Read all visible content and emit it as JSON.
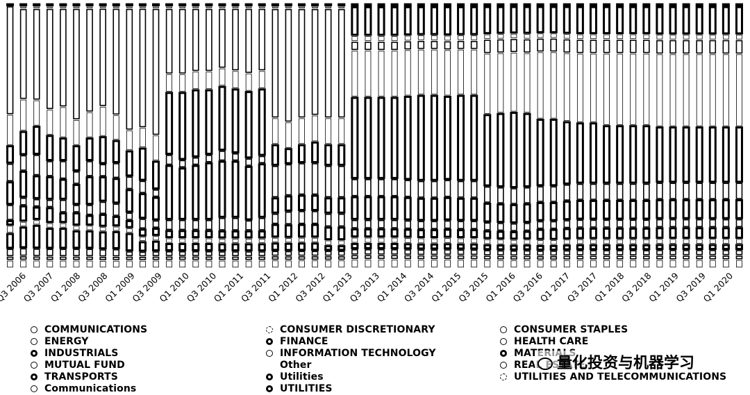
{
  "chart_data": {
    "type": "bar",
    "stacked": true,
    "normalized": true,
    "ylim": [
      0,
      100
    ],
    "grid": false,
    "legend_position": "bottom",
    "tick_labels": [
      "Q3 2006",
      "Q3 2007",
      "Q1 2008",
      "Q3 2008",
      "Q1 2009",
      "Q3 2009",
      "Q1 2010",
      "Q3 2010",
      "Q1 2011",
      "Q3 2011",
      "Q1 2012",
      "Q3 2012",
      "Q1 2013",
      "Q3 2013",
      "Q1 2014",
      "Q3 2014",
      "Q1 2015",
      "Q3 2015",
      "Q1 2016",
      "Q3 2016",
      "Q1 2017",
      "Q3 2017",
      "Q1 2018",
      "Q3 2018",
      "Q1 2019",
      "Q3 2019",
      "Q1 2020"
    ],
    "bar_count": 56,
    "series": [
      {
        "name": "COMMUNICATIONS",
        "stroke": "#000000",
        "stroke_width": 1.6,
        "values": [
          0,
          0,
          0,
          0,
          0,
          0,
          0,
          0,
          0,
          0,
          0,
          0,
          0,
          0,
          0,
          0,
          0,
          0,
          0,
          0,
          0,
          0,
          0,
          0,
          0,
          0,
          0,
          0,
          0,
          0,
          0,
          0,
          0,
          0,
          0,
          0,
          0,
          0,
          0,
          0,
          0,
          0,
          0,
          0,
          0,
          0,
          0,
          0,
          0,
          0,
          0,
          0,
          0,
          0,
          0,
          0
        ]
      },
      {
        "name": "CONSUMER DISCRETIONARY",
        "stroke": "#000000",
        "stroke_width": 0.8,
        "values": [
          3,
          3,
          3,
          3,
          3,
          3,
          3,
          3,
          3,
          3,
          3,
          3,
          3,
          3,
          3,
          3,
          3,
          3,
          3,
          3,
          3,
          3,
          3,
          3,
          3,
          3,
          3,
          3,
          3,
          3,
          3,
          3,
          3,
          3,
          3,
          3,
          3,
          3,
          3,
          3,
          3,
          3,
          3,
          3,
          3,
          3,
          3,
          3,
          3,
          3,
          3,
          3,
          3,
          3,
          3,
          3
        ]
      },
      {
        "name": "CONSUMER STAPLES",
        "stroke": "#000000",
        "stroke_width": 1.6,
        "values": [
          1.5,
          1.5,
          1.5,
          1.5,
          1.5,
          1.5,
          1.5,
          1.5,
          1.5,
          1.5,
          1.5,
          1.5,
          1.5,
          1.5,
          1.5,
          1.5,
          1.5,
          1.5,
          1.5,
          1.5,
          1.5,
          1.5,
          1.5,
          1.5,
          1.5,
          1.5,
          1.5,
          1.5,
          1.5,
          1.5,
          1.5,
          1.5,
          1.5,
          1.5,
          1.5,
          1.5,
          1.5,
          1.5,
          1.5,
          1.5,
          1.5,
          1.5,
          1.5,
          1.5,
          1.5,
          1.5,
          1.5,
          1.5,
          1.5,
          1.5,
          1.5,
          1.5,
          1.5,
          1.5,
          1.5,
          1.5
        ]
      },
      {
        "name": "ENERGY",
        "stroke": "#000000",
        "stroke_width": 1.6,
        "values": [
          3,
          3,
          3,
          3,
          3,
          3,
          3,
          3,
          3,
          2,
          2,
          2,
          2,
          2,
          2,
          2,
          2,
          2,
          2,
          2,
          2,
          2,
          2,
          2,
          2,
          2,
          2,
          2,
          2,
          2,
          2,
          2,
          2,
          2,
          2,
          2,
          2,
          2,
          2,
          2,
          2,
          2,
          2,
          2,
          2,
          2,
          2,
          2,
          2,
          2,
          2,
          2,
          2,
          2,
          2,
          2
        ]
      },
      {
        "name": "FINANCE",
        "stroke": "#000000",
        "stroke_width": 3,
        "values": [
          6,
          8,
          9,
          8,
          8,
          7,
          7,
          7,
          7,
          7,
          4,
          4,
          3,
          3,
          3,
          3,
          3,
          3,
          3,
          3,
          3,
          3,
          3,
          3,
          2,
          2,
          2,
          2,
          2,
          2,
          2,
          2,
          2,
          2,
          2,
          2,
          2,
          2,
          2,
          2,
          2,
          2,
          2,
          2,
          2,
          2,
          2,
          2,
          2,
          2,
          2,
          2,
          2,
          2,
          2,
          2
        ]
      },
      {
        "name": "HEALTH CARE",
        "stroke": "#000000",
        "stroke_width": 0.8,
        "values": [
          3,
          2,
          2,
          2,
          2,
          2,
          2,
          2,
          2,
          2,
          2,
          2,
          2,
          2,
          2,
          2,
          2,
          2,
          2,
          2,
          2,
          2,
          2,
          2,
          2,
          2,
          2,
          2,
          2,
          2,
          2,
          2,
          2,
          2,
          2,
          2,
          2,
          2,
          2,
          2,
          2,
          2,
          2,
          2,
          2,
          2,
          2,
          2,
          2,
          2,
          2,
          2,
          2,
          2,
          2,
          2
        ]
      },
      {
        "name": "INDUSTRIALS",
        "stroke": "#000000",
        "stroke_width": 3,
        "values": [
          2,
          6,
          5,
          6,
          4,
          5,
          4,
          5,
          4,
          3,
          3,
          3,
          3,
          3,
          3,
          3,
          3,
          3,
          3,
          3,
          5,
          5,
          5,
          5,
          5,
          5,
          3,
          3,
          3,
          3,
          3,
          3,
          3,
          3,
          3,
          3,
          3,
          3,
          3,
          3,
          4,
          4,
          4,
          4,
          4,
          4,
          4,
          4,
          4,
          4,
          4,
          4,
          4,
          4,
          4,
          4
        ]
      },
      {
        "name": "INFORMATION TECHNOLOGY",
        "stroke": "#000000",
        "stroke_width": 1.6,
        "values": [
          6,
          3,
          3,
          3,
          5,
          3,
          4,
          5,
          5,
          3,
          4,
          3,
          4,
          4,
          4,
          4,
          5,
          5,
          4,
          5,
          4,
          5,
          5,
          5,
          5,
          5,
          3,
          3,
          3,
          3,
          3,
          3,
          3,
          3,
          3,
          3,
          3,
          3,
          3,
          3,
          3,
          3,
          3,
          3,
          3,
          3,
          3,
          3,
          3,
          3,
          3,
          3,
          3,
          3,
          3,
          3
        ]
      },
      {
        "name": "MATERIALS",
        "stroke": "#000000",
        "stroke_width": 3,
        "values": [
          9,
          10,
          9,
          9,
          8,
          8,
          11,
          10,
          10,
          9,
          10,
          9,
          21,
          20,
          21,
          22,
          22,
          22,
          21,
          21,
          6,
          6,
          6,
          6,
          6,
          6,
          8,
          8,
          8,
          8,
          8,
          8,
          8,
          8,
          8,
          8,
          7,
          7,
          7,
          7,
          7,
          7,
          7,
          7,
          7,
          7,
          7,
          7,
          7,
          7,
          7,
          7,
          7,
          7,
          7,
          7
        ]
      },
      {
        "name": "MUTUAL FUND",
        "stroke": "#000000",
        "stroke_width": 1.6,
        "values": [
          7,
          6,
          8,
          6,
          7,
          5,
          6,
          5,
          6,
          5,
          5,
          3,
          4,
          3,
          3,
          3,
          4,
          3,
          3,
          3,
          12,
          12,
          12,
          12,
          12,
          12,
          6,
          6,
          6,
          6,
          6,
          6,
          6,
          6,
          6,
          6,
          6,
          6,
          6,
          6,
          6,
          6,
          6,
          6,
          6,
          6,
          6,
          6,
          6,
          6,
          6,
          6,
          6,
          6,
          6,
          6
        ]
      },
      {
        "name": "REAL ESTATE",
        "stroke": "#000000",
        "stroke_width": 1.6,
        "values": [
          0,
          0,
          0,
          0,
          0,
          0,
          0,
          0,
          0,
          0,
          0,
          0,
          0,
          0,
          0,
          0,
          0,
          0,
          0,
          0,
          0,
          0,
          0,
          0,
          0,
          0,
          0,
          0,
          0,
          0,
          0,
          0,
          0,
          0,
          0,
          0,
          0,
          0,
          0,
          0,
          0,
          0,
          0,
          0,
          0,
          0,
          0,
          0,
          0,
          0,
          0,
          0,
          0,
          0,
          0,
          0
        ]
      },
      {
        "name": "TRANSPORTS",
        "stroke": "#000000",
        "stroke_width": 3,
        "values": [
          7,
          9,
          11,
          10,
          9,
          10,
          9,
          11,
          9,
          10,
          13,
          11,
          24,
          26,
          26,
          25,
          25,
          25,
          26,
          26,
          8,
          6,
          7,
          8,
          8,
          8,
          28,
          28,
          28,
          28,
          29,
          30,
          30,
          29,
          30,
          30,
          26,
          27,
          28,
          27,
          25,
          25,
          23,
          22,
          22,
          21,
          21,
          21,
          21,
          20,
          20,
          20,
          20,
          20,
          20,
          20
        ]
      },
      {
        "name": "UTILITIES AND TELECOMMUNICATIONS",
        "stroke": "#000000",
        "stroke_width": 0.8,
        "values": [
          12,
          12,
          10,
          10,
          12,
          10,
          10,
          12,
          10,
          8,
          8,
          10,
          7,
          7,
          7,
          7,
          7,
          7,
          7,
          7,
          10,
          10,
          10,
          10,
          10,
          10,
          16,
          16,
          16,
          16,
          16,
          16,
          16,
          16,
          16,
          16,
          22,
          22,
          22,
          22,
          25,
          25,
          25,
          25,
          25,
          26,
          26,
          26,
          26,
          26,
          26,
          26,
          26,
          26,
          26,
          26
        ]
      },
      {
        "name": "Communications",
        "stroke": "#000000",
        "stroke_width": 1.6,
        "values": [
          42,
          34,
          35,
          39,
          38,
          43,
          40,
          39,
          42,
          47,
          47,
          49,
          25,
          25,
          24,
          24,
          23,
          24,
          25,
          24,
          41,
          43,
          41,
          40,
          41,
          41,
          3,
          3,
          3,
          3,
          3,
          3,
          3,
          3,
          3,
          3,
          5,
          5,
          5,
          5,
          5,
          5,
          5,
          5,
          5,
          5,
          5,
          5,
          5,
          5,
          5,
          5,
          5,
          5,
          5,
          5
        ]
      },
      {
        "name": "Other",
        "stroke": "#000000",
        "stroke_width": 0.8,
        "values": [
          0,
          1,
          1,
          1,
          1,
          1,
          1,
          1,
          1,
          1,
          1,
          1,
          1,
          1,
          1,
          1,
          1,
          1,
          1,
          1,
          1,
          1,
          1,
          1,
          1,
          1,
          2,
          2,
          2,
          2,
          2,
          2,
          2,
          2,
          2,
          2,
          2,
          2,
          2,
          2,
          2,
          2,
          2,
          2,
          2,
          2,
          2,
          2,
          2,
          2,
          2,
          2,
          2,
          2,
          2,
          2
        ]
      },
      {
        "name": "Utilities",
        "stroke": "#000000",
        "stroke_width": 3,
        "values": [
          0,
          0,
          0,
          0,
          0,
          0,
          0,
          0,
          0,
          0,
          0,
          0,
          0,
          0,
          0,
          0,
          0,
          0,
          0,
          0,
          0,
          0,
          0,
          0,
          0,
          0,
          10,
          10,
          10,
          10,
          10,
          10,
          10,
          10,
          10,
          10,
          10,
          10,
          10,
          10,
          10,
          10,
          10,
          10,
          10,
          10,
          10,
          10,
          10,
          10,
          10,
          10,
          10,
          10,
          10,
          10
        ]
      },
      {
        "name": "UTILITIES",
        "stroke": "#000000",
        "stroke_width": 3,
        "values": [
          1,
          1,
          1,
          1,
          1,
          1,
          1,
          1,
          1,
          1,
          1,
          1,
          1,
          1,
          1,
          1,
          1,
          1,
          1,
          1,
          1,
          1,
          1,
          1,
          1,
          1,
          1,
          1,
          1,
          1,
          1,
          1,
          1,
          1,
          1,
          1,
          1,
          1,
          1,
          1,
          1,
          1,
          1,
          1,
          1,
          1,
          1,
          1,
          1,
          1,
          1,
          1,
          1,
          1,
          1,
          1
        ]
      }
    ]
  },
  "legend": {
    "columns": [
      [
        {
          "label": "COMMUNICATIONS",
          "style": "mid"
        },
        {
          "label": "ENERGY",
          "style": "mid"
        },
        {
          "label": "INDUSTRIALS",
          "style": "bold"
        },
        {
          "label": "MUTUAL FUND",
          "style": "mid"
        },
        {
          "label": "TRANSPORTS",
          "style": "bold"
        },
        {
          "label": "Communications",
          "style": "mid"
        }
      ],
      [
        {
          "label": "CONSUMER DISCRETIONARY",
          "style": "dashed"
        },
        {
          "label": "FINANCE",
          "style": "bold"
        },
        {
          "label": "INFORMATION TECHNOLOGY",
          "style": "mid"
        },
        {
          "label": "Other",
          "style": "none"
        },
        {
          "label": "Utilities",
          "style": "bold"
        },
        {
          "label": "UTILITIES",
          "style": "bold"
        }
      ],
      [
        {
          "label": "CONSUMER STAPLES",
          "style": "mid"
        },
        {
          "label": "HEALTH CARE",
          "style": "thin"
        },
        {
          "label": "MATERIALS",
          "style": "bold"
        },
        {
          "label": "REAL ESTATE",
          "style": "mid"
        },
        {
          "label": "UTILITIES AND TELECOMMUNICATIONS",
          "style": "dashed"
        }
      ]
    ]
  },
  "watermark": {
    "text": "量化投资与机器学习"
  }
}
